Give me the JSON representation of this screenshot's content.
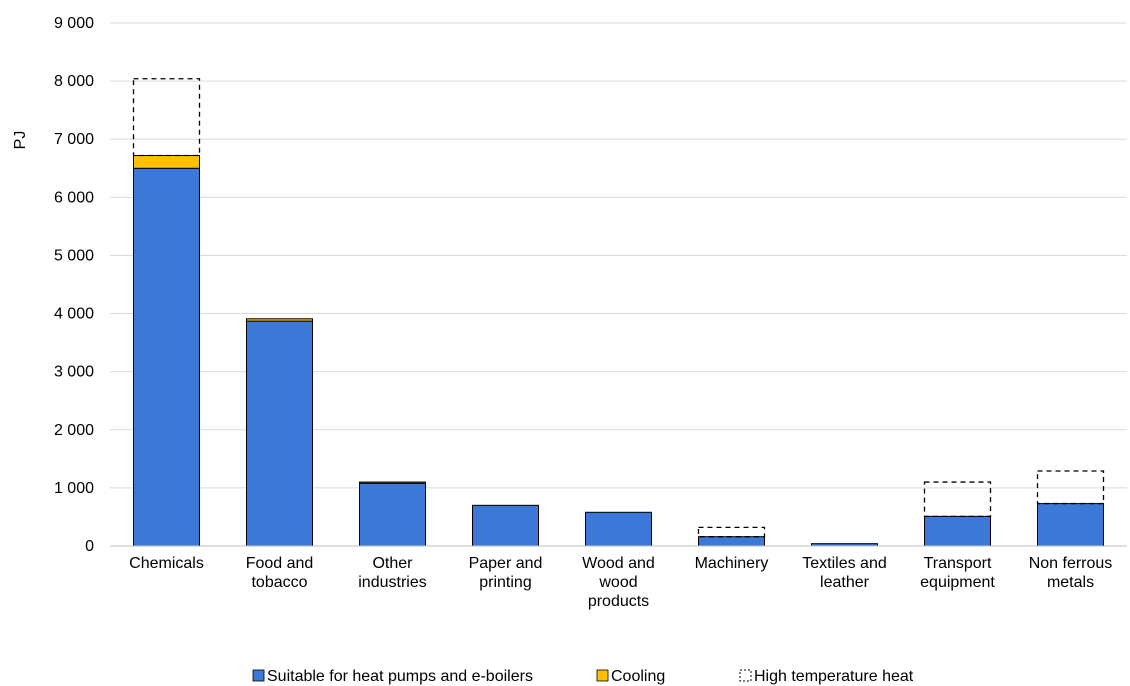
{
  "chart_data": {
    "type": "bar",
    "stacked": true,
    "ylabel": "PJ",
    "ylim": [
      0,
      9000
    ],
    "yticks": [
      0,
      1000,
      2000,
      3000,
      4000,
      5000,
      6000,
      7000,
      8000,
      9000
    ],
    "ytick_labels": [
      "0",
      "1 000",
      "2 000",
      "3 000",
      "4 000",
      "5 000",
      "6 000",
      "7 000",
      "8 000",
      "9 000"
    ],
    "grid": true,
    "legend_position": "bottom",
    "categories": [
      [
        "Chemicals"
      ],
      [
        "Food and",
        "tobacco"
      ],
      [
        "Other",
        "industries"
      ],
      [
        "Paper and",
        "printing"
      ],
      [
        "Wood and",
        "wood",
        "products"
      ],
      [
        "Machinery"
      ],
      [
        "Textiles and",
        "leather"
      ],
      [
        "Transport",
        "equipment"
      ],
      [
        "Non ferrous",
        "metals"
      ]
    ],
    "series": [
      {
        "name": "Suitable for heat pumps and e-boilers",
        "color": "#3C78D8",
        "style": "solid",
        "values": [
          6500,
          3870,
          1080,
          700,
          580,
          160,
          40,
          510,
          730
        ]
      },
      {
        "name": "Cooling",
        "color": "#FFC000",
        "style": "solid",
        "values": [
          220,
          40,
          20,
          0,
          0,
          0,
          0,
          0,
          0
        ]
      },
      {
        "name": "High temperature heat",
        "color": "#000000",
        "style": "dashed-outline",
        "values": [
          1320,
          0,
          0,
          0,
          0,
          160,
          0,
          590,
          560
        ]
      }
    ]
  }
}
